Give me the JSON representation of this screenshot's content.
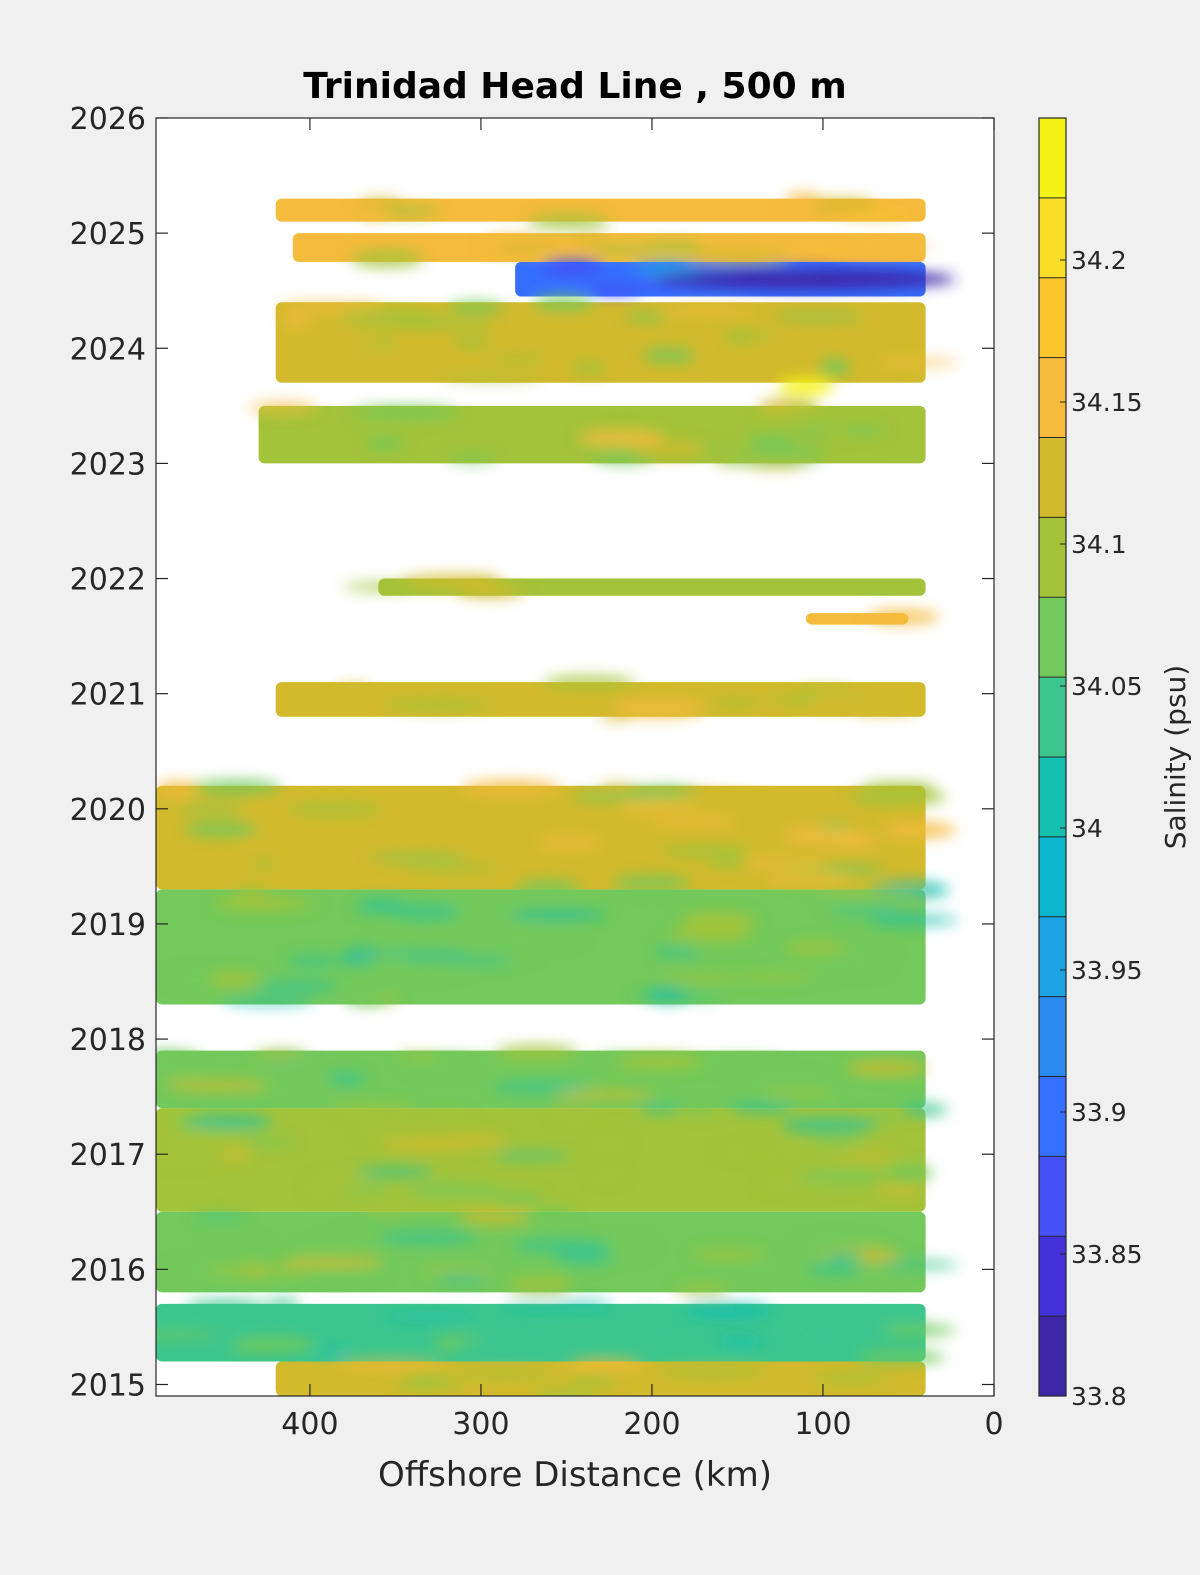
{
  "chart_data": {
    "type": "heatmap",
    "title": "Trinidad Head Line , 500 m",
    "xlabel": "Offshore Distance (km)",
    "ylabel": "",
    "x_reversed": true,
    "xlim": [
      0,
      490
    ],
    "ylim": [
      2014.9,
      2026
    ],
    "x_ticks": [
      400,
      300,
      200,
      100,
      0
    ],
    "y_ticks": [
      2015,
      2016,
      2017,
      2018,
      2019,
      2020,
      2021,
      2022,
      2023,
      2024,
      2025,
      2026
    ],
    "grid": false,
    "colorbar": {
      "label": "Salinity (psu)",
      "min": 33.8,
      "max": 34.25,
      "ticks": [
        "33.8",
        "33.85",
        "33.9",
        "33.95",
        "34",
        "34.05",
        "34.1",
        "34.15",
        "34.2"
      ],
      "colors": [
        "#3e26a8",
        "#4331d9",
        "#4650f7",
        "#356ffe",
        "#2a8bef",
        "#1ea4e4",
        "#0bb7cf",
        "#16c0ae",
        "#3cc68e",
        "#73c95b",
        "#a3c33a",
        "#d2ba2c",
        "#f5bb3c",
        "#fcc52c",
        "#f9dd26",
        "#f5f315"
      ]
    },
    "data_bands": [
      {
        "y_start": 2014.9,
        "y_end": 2015.2,
        "x_min": 40,
        "x_max": 420,
        "mean_salinity": 34.12
      },
      {
        "y_start": 2015.2,
        "y_end": 2015.7,
        "x_min": 40,
        "x_max": 490,
        "mean_salinity": 34.04
      },
      {
        "y_start": 2015.8,
        "y_end": 2016.5,
        "x_min": 40,
        "x_max": 490,
        "mean_salinity": 34.08
      },
      {
        "y_start": 2016.5,
        "y_end": 2017.4,
        "x_min": 40,
        "x_max": 490,
        "mean_salinity": 34.09
      },
      {
        "y_start": 2017.4,
        "y_end": 2017.9,
        "x_min": 40,
        "x_max": 490,
        "mean_salinity": 34.08
      },
      {
        "y_start": 2018.3,
        "y_end": 2019.3,
        "x_min": 40,
        "x_max": 490,
        "mean_salinity": 34.06
      },
      {
        "y_start": 2019.3,
        "y_end": 2020.2,
        "x_min": 40,
        "x_max": 490,
        "mean_salinity": 34.11
      },
      {
        "y_start": 2020.8,
        "y_end": 2021.1,
        "x_min": 40,
        "x_max": 420,
        "mean_salinity": 34.13
      },
      {
        "y_start": 2021.6,
        "y_end": 2021.7,
        "x_min": 50,
        "x_max": 110,
        "mean_salinity": 34.14
      },
      {
        "y_start": 2021.85,
        "y_end": 2022.0,
        "x_min": 40,
        "x_max": 360,
        "mean_salinity": 34.1
      },
      {
        "y_start": 2023.0,
        "y_end": 2023.5,
        "x_min": 40,
        "x_max": 430,
        "mean_salinity": 34.1
      },
      {
        "y_start": 2023.7,
        "y_end": 2024.4,
        "x_min": 40,
        "x_max": 420,
        "mean_salinity": 34.11
      },
      {
        "y_start": 2024.45,
        "y_end": 2024.75,
        "x_min": 40,
        "x_max": 280,
        "mean_salinity": 33.9
      },
      {
        "y_start": 2024.75,
        "y_end": 2025.0,
        "x_min": 40,
        "x_max": 410,
        "mean_salinity": 34.14
      },
      {
        "y_start": 2025.1,
        "y_end": 2025.3,
        "x_min": 40,
        "x_max": 420,
        "mean_salinity": 34.14
      }
    ]
  }
}
